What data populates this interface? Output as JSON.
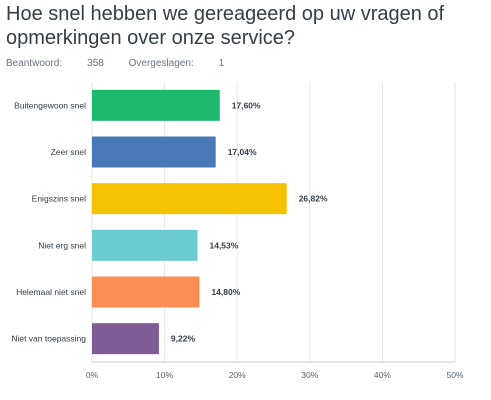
{
  "title": "Hoe snel hebben we gereageerd op uw vragen of opmerkingen over onze service?",
  "meta": {
    "answered_label": "Beantwoord:",
    "answered_value": "358",
    "skipped_label": "Overgeslagen:",
    "skipped_value": "1"
  },
  "chart_data": {
    "type": "bar",
    "orientation": "horizontal",
    "categories": [
      "Buitengewoon snel",
      "Zeer snel",
      "Enigszins snel",
      "Niet erg snel",
      "Helemaal niet snel",
      "Niet van toepassing"
    ],
    "values": [
      17.6,
      17.04,
      26.82,
      14.53,
      14.8,
      9.22
    ],
    "value_labels": [
      "17,60%",
      "17,04%",
      "26,82%",
      "14,53%",
      "14,80%",
      "9,22%"
    ],
    "colors": [
      "#1db86d",
      "#4a78b8",
      "#f4c200",
      "#6ccbd1",
      "#fb8c53",
      "#7e5c95"
    ],
    "xlim": [
      0,
      50
    ],
    "xticks": [
      0,
      10,
      20,
      30,
      40,
      50
    ],
    "xtick_labels": [
      "0%",
      "10%",
      "20%",
      "30%",
      "40%",
      "50%"
    ],
    "grid": true,
    "legend": "none"
  }
}
